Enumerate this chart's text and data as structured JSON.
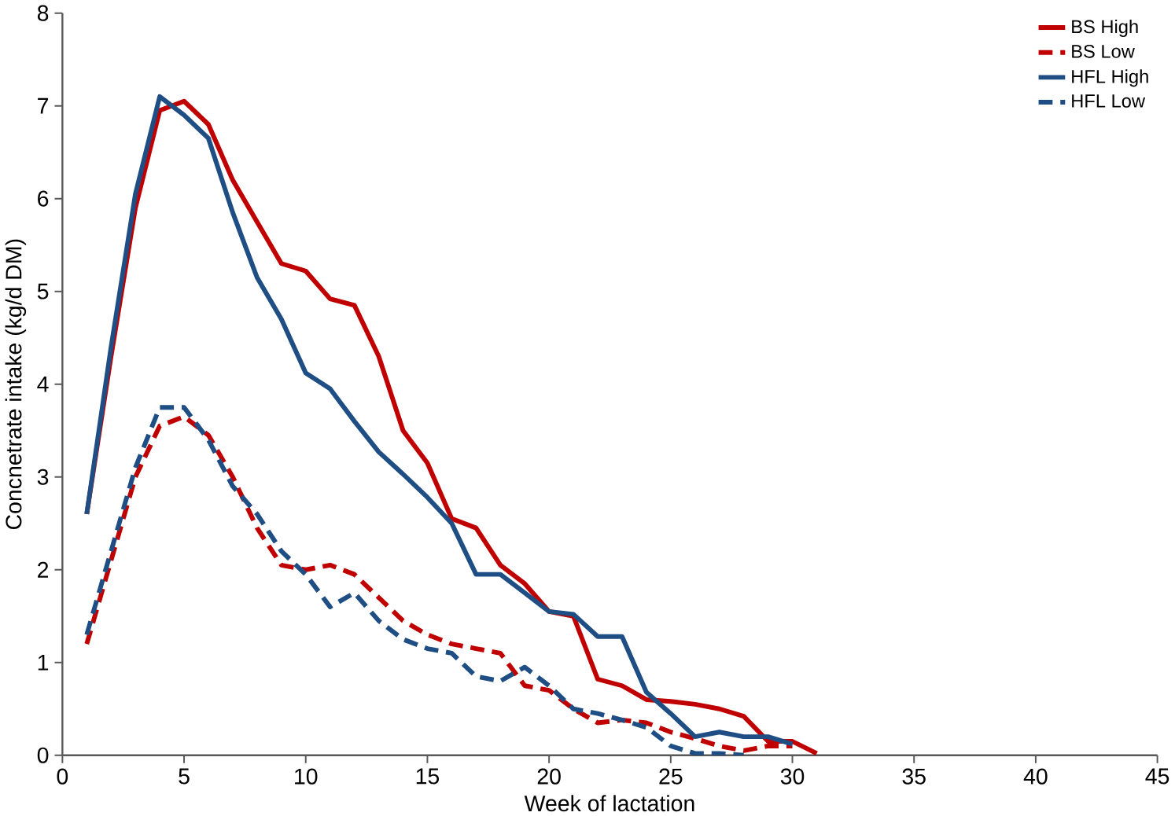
{
  "chart_data": {
    "type": "line",
    "xlabel": "Week of lactation",
    "ylabel": "Concnetrate intake (kg/d DM)",
    "xlim": [
      0,
      45
    ],
    "ylim": [
      0,
      8
    ],
    "xticks": [
      0,
      5,
      10,
      15,
      20,
      25,
      30,
      35,
      40,
      45
    ],
    "yticks": [
      0,
      1,
      2,
      3,
      4,
      5,
      6,
      7,
      8
    ],
    "grid": false,
    "legend": "top right",
    "marker": "none",
    "series": [
      {
        "name": "BS High",
        "color": "#c00000",
        "line_style": "solid",
        "x": [
          1,
          2,
          3,
          4,
          5,
          6,
          7,
          8,
          9,
          10,
          11,
          12,
          13,
          14,
          15,
          16,
          17,
          18,
          19,
          20,
          21,
          22,
          23,
          24,
          25,
          26,
          27,
          28,
          29,
          30,
          31
        ],
        "values": [
          2.6,
          4.3,
          5.9,
          6.95,
          7.05,
          6.8,
          6.2,
          5.75,
          5.3,
          5.22,
          4.92,
          4.85,
          4.3,
          3.5,
          3.15,
          2.55,
          2.45,
          2.05,
          1.85,
          1.55,
          1.5,
          0.82,
          0.75,
          0.6,
          0.58,
          0.55,
          0.5,
          0.42,
          0.15,
          0.15,
          0.02
        ]
      },
      {
        "name": "BS Low",
        "color": "#c00000",
        "line_style": "dashed",
        "x": [
          1,
          2,
          3,
          4,
          5,
          6,
          7,
          8,
          9,
          10,
          11,
          12,
          13,
          14,
          15,
          16,
          17,
          18,
          19,
          20,
          21,
          22,
          23,
          24,
          25,
          26,
          27,
          28,
          29,
          30
        ],
        "values": [
          1.2,
          2.1,
          3.0,
          3.55,
          3.65,
          3.45,
          3.0,
          2.45,
          2.05,
          2.0,
          2.05,
          1.95,
          1.7,
          1.45,
          1.3,
          1.2,
          1.15,
          1.1,
          0.75,
          0.7,
          0.5,
          0.35,
          0.38,
          0.35,
          0.25,
          0.18,
          0.1,
          0.05,
          0.1,
          0.1
        ]
      },
      {
        "name": "HFL High",
        "color": "#1f4e84",
        "line_style": "solid",
        "x": [
          1,
          2,
          3,
          4,
          5,
          6,
          7,
          8,
          9,
          10,
          11,
          12,
          13,
          14,
          15,
          16,
          17,
          18,
          19,
          20,
          21,
          22,
          23,
          24,
          25,
          26,
          27,
          28,
          29,
          30
        ],
        "values": [
          2.6,
          4.4,
          6.05,
          7.1,
          6.9,
          6.65,
          5.85,
          5.15,
          4.7,
          4.12,
          3.95,
          3.6,
          3.27,
          3.03,
          2.78,
          2.5,
          1.95,
          1.95,
          1.75,
          1.55,
          1.52,
          1.28,
          1.28,
          0.68,
          0.45,
          0.2,
          0.25,
          0.2,
          0.2,
          0.12
        ]
      },
      {
        "name": "HFL Low",
        "color": "#1f4e84",
        "line_style": "dashed",
        "x": [
          1,
          2,
          3,
          4,
          5,
          6,
          7,
          8,
          9,
          10,
          11,
          12,
          13,
          14,
          15,
          16,
          17,
          18,
          19,
          20,
          21,
          22,
          23,
          24,
          25,
          26,
          27,
          28
        ],
        "values": [
          1.3,
          2.2,
          3.1,
          3.75,
          3.75,
          3.4,
          2.9,
          2.6,
          2.2,
          1.95,
          1.6,
          1.75,
          1.45,
          1.25,
          1.15,
          1.1,
          0.85,
          0.8,
          0.95,
          0.75,
          0.5,
          0.45,
          0.38,
          0.3,
          0.1,
          0.02,
          0.02,
          0.0
        ]
      }
    ]
  }
}
